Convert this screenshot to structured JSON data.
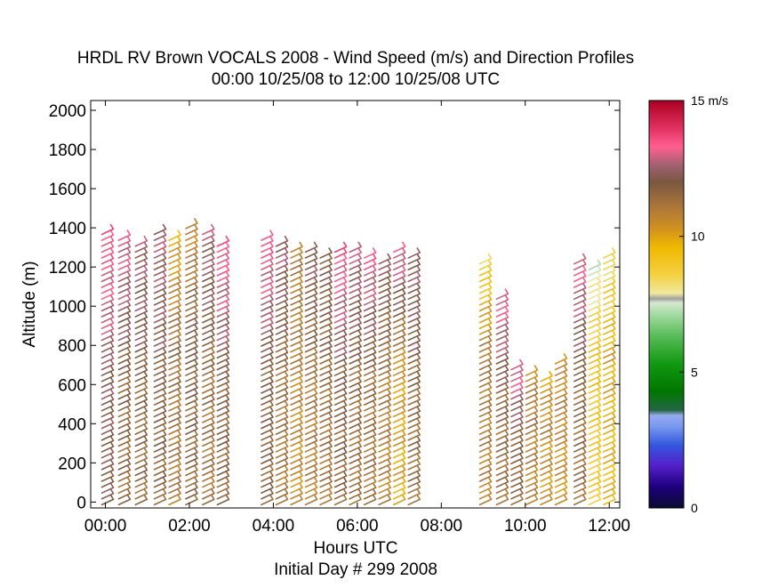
{
  "chart_data": {
    "type": "scatter",
    "title": "HRDL RV Brown VOCALS 2008 - Wind Speed (m/s) and Direction Profiles",
    "subtitle": "00:00 10/25/08 to 12:00 10/25/08  UTC",
    "xlabel": "Hours UTC",
    "xlabel2": "Initial Day # 299  2008",
    "ylabel": "Altitude (m)",
    "xlim": [
      -0.35,
      12.25
    ],
    "ylim": [
      -30,
      2050
    ],
    "x_ticks": [
      0,
      2,
      4,
      6,
      8,
      10,
      12
    ],
    "x_tick_labels": [
      "00:00",
      "02:00",
      "04:00",
      "06:00",
      "08:00",
      "10:00",
      "12:00"
    ],
    "y_ticks": [
      0,
      200,
      400,
      600,
      800,
      1000,
      1200,
      1400,
      1600,
      1800,
      2000
    ],
    "y_tick_labels": [
      "0",
      "200",
      "400",
      "600",
      "800",
      "1000",
      "1200",
      "1400",
      "1600",
      "1800",
      "2000"
    ],
    "grid": false,
    "colorbar": {
      "range": [
        0,
        15
      ],
      "unit_label": "15 m/s",
      "tick_values": [
        0,
        5,
        10
      ],
      "tick_labels": [
        "0",
        "5",
        "10"
      ],
      "colormap_stops": [
        {
          "v": 0.0,
          "c": "#0a0a30"
        },
        {
          "v": 0.8,
          "c": "#200080"
        },
        {
          "v": 1.6,
          "c": "#5522cc"
        },
        {
          "v": 2.3,
          "c": "#3355dd"
        },
        {
          "v": 3.0,
          "c": "#7799ee"
        },
        {
          "v": 3.4,
          "c": "#99aaf0"
        },
        {
          "v": 3.6,
          "c": "#226644"
        },
        {
          "v": 4.3,
          "c": "#007700"
        },
        {
          "v": 5.3,
          "c": "#119911"
        },
        {
          "v": 6.3,
          "c": "#55bb55"
        },
        {
          "v": 7.2,
          "c": "#aaddaa"
        },
        {
          "v": 7.55,
          "c": "#d8e8d0"
        },
        {
          "v": 7.7,
          "c": "#a0a0a0"
        },
        {
          "v": 7.9,
          "c": "#f0e8a0"
        },
        {
          "v": 8.6,
          "c": "#f5d040"
        },
        {
          "v": 9.6,
          "c": "#f0b800"
        },
        {
          "v": 10.3,
          "c": "#d09020"
        },
        {
          "v": 11.0,
          "c": "#b07838"
        },
        {
          "v": 12.0,
          "c": "#7a5840"
        },
        {
          "v": 12.6,
          "c": "#a06070"
        },
        {
          "v": 13.3,
          "c": "#ff6090"
        },
        {
          "v": 14.0,
          "c": "#e03060"
        },
        {
          "v": 15.0,
          "c": "#aa0020"
        }
      ]
    },
    "barb_spacing_m": 30,
    "profiles": [
      {
        "t": 0.0,
        "top": 1400,
        "speed": 12.6,
        "hi": 13.5
      },
      {
        "t": 0.4,
        "top": 1370,
        "speed": 12.0,
        "hi": 13.2
      },
      {
        "t": 0.8,
        "top": 1330,
        "speed": 12.0,
        "hi": 12.6
      },
      {
        "t": 1.25,
        "top": 1380,
        "speed": 12.2,
        "hi": 12.6
      },
      {
        "t": 1.6,
        "top": 1350,
        "speed": 11.6,
        "hi": 9.8
      },
      {
        "t": 2.0,
        "top": 1410,
        "speed": 12.1,
        "hi": 10.5
      },
      {
        "t": 2.4,
        "top": 1380,
        "speed": 11.7,
        "hi": 12.6
      },
      {
        "t": 2.75,
        "top": 1340,
        "speed": 12.2,
        "hi": 13.5
      },
      {
        "t": 3.8,
        "top": 1370,
        "speed": 12.2,
        "hi": 13.5
      },
      {
        "t": 4.15,
        "top": 1330,
        "speed": 11.6,
        "hi": 12.6
      },
      {
        "t": 4.5,
        "top": 1300,
        "speed": 11.0,
        "hi": 10.9
      },
      {
        "t": 4.85,
        "top": 1290,
        "speed": 11.4,
        "hi": 12.4
      },
      {
        "t": 5.2,
        "top": 1260,
        "speed": 11.7,
        "hi": 12.0
      },
      {
        "t": 5.55,
        "top": 1300,
        "speed": 12.2,
        "hi": 13.5
      },
      {
        "t": 5.9,
        "top": 1310,
        "speed": 11.8,
        "hi": 12.8
      },
      {
        "t": 6.25,
        "top": 1280,
        "speed": 11.7,
        "hi": 13.4
      },
      {
        "t": 6.6,
        "top": 1230,
        "speed": 11.3,
        "hi": 12.3
      },
      {
        "t": 6.95,
        "top": 1290,
        "speed": 10.5,
        "hi": 13.3
      },
      {
        "t": 7.3,
        "top": 1260,
        "speed": 11.9,
        "hi": 12.4
      },
      {
        "t": 9.0,
        "top": 1250,
        "speed": 11.3,
        "hi": 8.6
      },
      {
        "t": 9.4,
        "top": 1050,
        "speed": 11.9,
        "hi": 13.3
      },
      {
        "t": 9.75,
        "top": 690,
        "speed": 12.1,
        "hi": 13.3
      },
      {
        "t": 10.1,
        "top": 680,
        "speed": 11.2,
        "hi": 10.5
      },
      {
        "t": 10.45,
        "top": 640,
        "speed": 10.8,
        "hi": 10.0
      },
      {
        "t": 10.8,
        "top": 740,
        "speed": 10.9,
        "hi": 10.3
      },
      {
        "t": 11.25,
        "top": 1250,
        "speed": 11.9,
        "hi": 13.3
      },
      {
        "t": 11.6,
        "top": 1210,
        "speed": 9.6,
        "hi": 7.5
      },
      {
        "t": 11.95,
        "top": 1270,
        "speed": 10.2,
        "hi": 8.3
      }
    ]
  }
}
